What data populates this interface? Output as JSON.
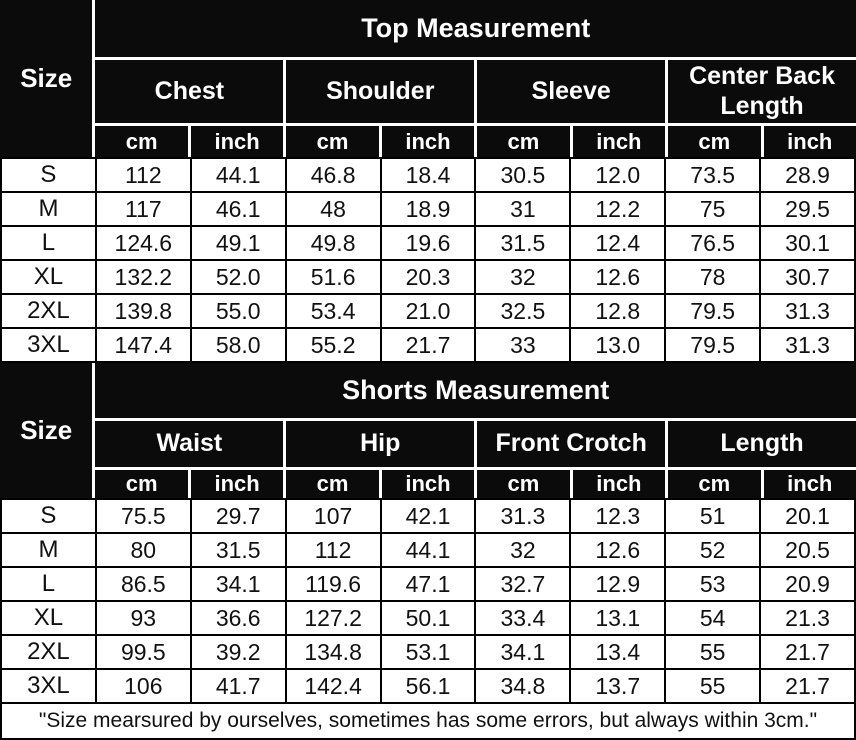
{
  "theme": {
    "header_bg": "#0b0b0b",
    "header_text": "#ffffff",
    "grid_line": "#000000"
  },
  "tables": [
    {
      "title": "Top Measurement",
      "size_label": "Size",
      "columns": [
        "Chest",
        "Shoulder",
        "Sleeve",
        "Center Back Length"
      ],
      "unit_labels": [
        "cm",
        "inch"
      ],
      "rows": [
        {
          "size": "S",
          "values": [
            "112",
            "44.1",
            "46.8",
            "18.4",
            "30.5",
            "12.0",
            "73.5",
            "28.9"
          ]
        },
        {
          "size": "M",
          "values": [
            "117",
            "46.1",
            "48",
            "18.9",
            "31",
            "12.2",
            "75",
            "29.5"
          ]
        },
        {
          "size": "L",
          "values": [
            "124.6",
            "49.1",
            "49.8",
            "19.6",
            "31.5",
            "12.4",
            "76.5",
            "30.1"
          ]
        },
        {
          "size": "XL",
          "values": [
            "132.2",
            "52.0",
            "51.6",
            "20.3",
            "32",
            "12.6",
            "78",
            "30.7"
          ]
        },
        {
          "size": "2XL",
          "values": [
            "139.8",
            "55.0",
            "53.4",
            "21.0",
            "32.5",
            "12.8",
            "79.5",
            "31.3"
          ]
        },
        {
          "size": "3XL",
          "values": [
            "147.4",
            "58.0",
            "55.2",
            "21.7",
            "33",
            "13.0",
            "79.5",
            "31.3"
          ]
        }
      ]
    },
    {
      "title": "Shorts Measurement",
      "size_label": "Size",
      "columns": [
        "Waist",
        "Hip",
        "Front Crotch",
        "Length"
      ],
      "unit_labels": [
        "cm",
        "inch"
      ],
      "rows": [
        {
          "size": "S",
          "values": [
            "75.5",
            "29.7",
            "107",
            "42.1",
            "31.3",
            "12.3",
            "51",
            "20.1"
          ]
        },
        {
          "size": "M",
          "values": [
            "80",
            "31.5",
            "112",
            "44.1",
            "32",
            "12.6",
            "52",
            "20.5"
          ]
        },
        {
          "size": "L",
          "values": [
            "86.5",
            "34.1",
            "119.6",
            "47.1",
            "32.7",
            "12.9",
            "53",
            "20.9"
          ]
        },
        {
          "size": "XL",
          "values": [
            "93",
            "36.6",
            "127.2",
            "50.1",
            "33.4",
            "13.1",
            "54",
            "21.3"
          ]
        },
        {
          "size": "2XL",
          "values": [
            "99.5",
            "39.2",
            "134.8",
            "53.1",
            "34.1",
            "13.4",
            "55",
            "21.7"
          ]
        },
        {
          "size": "3XL",
          "values": [
            "106",
            "41.7",
            "142.4",
            "56.1",
            "34.8",
            "13.7",
            "55",
            "21.7"
          ]
        }
      ]
    }
  ],
  "footer": {
    "note": "\"Size mearsured by ourselves, sometimes has some errors, but always within 3cm.\""
  }
}
